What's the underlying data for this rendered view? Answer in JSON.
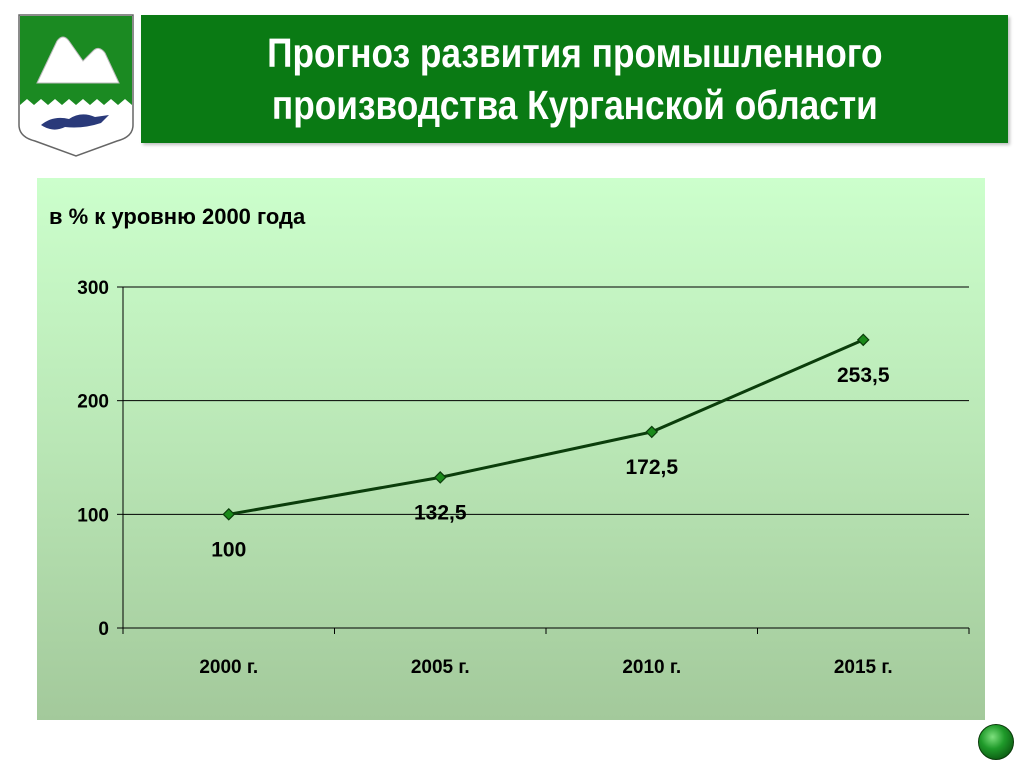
{
  "slide": {
    "title": "Прогноз развития промышленного\nпроизводства Курганской области",
    "colors": {
      "title_bg": "#0a7a14",
      "line": "#0b3d0b",
      "marker": "#1a8a1a"
    },
    "icons": {
      "emblem": "kurgan-coat-of-arms-icon",
      "nav": "green-round-button-icon"
    }
  },
  "chart_data": {
    "type": "line",
    "title": "в % к уровню 2000 года",
    "categories": [
      "2000 г.",
      "2005 г.",
      "2010 г.",
      "2015 г."
    ],
    "series": [
      {
        "values": [
          100,
          132.5,
          172.5,
          253.5
        ]
      }
    ],
    "data_labels": [
      "100",
      "132,5",
      "172,5",
      "253,5"
    ],
    "ylim": [
      0,
      300
    ],
    "yticks": [
      0,
      100,
      200,
      300
    ],
    "grid": true,
    "legend": "none"
  }
}
